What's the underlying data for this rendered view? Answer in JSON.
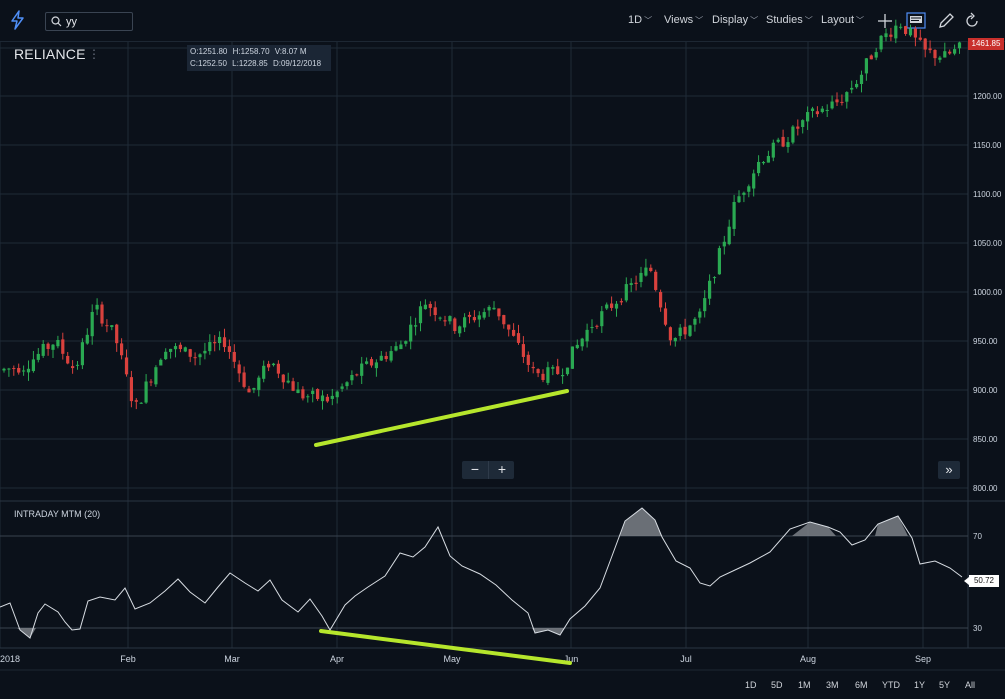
{
  "toolbar": {
    "search_value": "yy",
    "interval": "1D",
    "views": "Views",
    "display": "Display",
    "studies": "Studies",
    "layout": "Layout"
  },
  "chart": {
    "symbol": "RELIANCE",
    "ohlc": {
      "open": "O:1251.80",
      "high": "H:1258.70",
      "volume": "V:8.07 M",
      "close": "C:1252.50",
      "low": "L:1228.85",
      "date": "D:09/12/2018"
    },
    "last_price": "1461.85",
    "price_ticks": [
      "1200.00",
      "1150.00",
      "1100.00",
      "1050.00",
      "1000.00",
      "950.00",
      "900.00",
      "850.00",
      "800.00"
    ],
    "month_labels": [
      "2018",
      "Feb",
      "Mar",
      "Apr",
      "May",
      "Jun",
      "Jul",
      "Aug",
      "Sep"
    ],
    "up_color": "#2aa952",
    "down_color": "#d9413d",
    "trendline_color": "#b6e62c"
  },
  "indicator": {
    "title": "INTRADAY MTM (20)",
    "value": "50.72",
    "ticks": [
      "70",
      "30"
    ]
  },
  "zoom": {
    "minus": "−",
    "plus": "+"
  },
  "scroll_forward": "»",
  "ranges": [
    "1D",
    "5D",
    "1M",
    "3M",
    "6M",
    "YTD",
    "1Y",
    "5Y",
    "All"
  ]
}
